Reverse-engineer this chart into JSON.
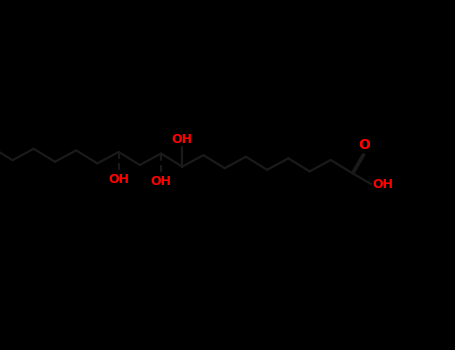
{
  "bg": "#000000",
  "bond_color": "#1a1a1a",
  "o_color": "#ff0000",
  "lw": 1.6,
  "figsize": [
    4.55,
    3.5
  ],
  "dpi": 100,
  "xlim": [
    0.0,
    4.55
  ],
  "ylim": [
    0.0,
    3.5
  ],
  "font_size": 9
}
